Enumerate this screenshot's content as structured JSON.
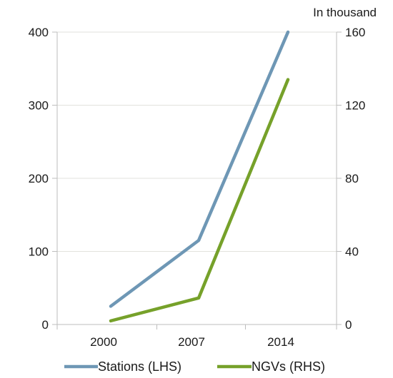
{
  "chart_data": {
    "type": "line",
    "title": "",
    "unit_label": "In thousand",
    "categories": [
      "2000",
      "2007",
      "2014"
    ],
    "y_left": {
      "ticks": [
        0,
        100,
        200,
        300,
        400
      ],
      "range": [
        0,
        400
      ]
    },
    "y_right": {
      "ticks": [
        0,
        40,
        80,
        120,
        160
      ],
      "range": [
        0,
        160
      ]
    },
    "grid": "horizontal",
    "legend_position": "bottom",
    "series": [
      {
        "name": "Stations (LHS)",
        "axis": "left",
        "color": "#6e97b5",
        "values": [
          25,
          115,
          405
        ]
      },
      {
        "name": "NGVs (RHS)",
        "axis": "right",
        "color": "#76a12a",
        "values": [
          2,
          14.5,
          134
        ]
      }
    ]
  }
}
